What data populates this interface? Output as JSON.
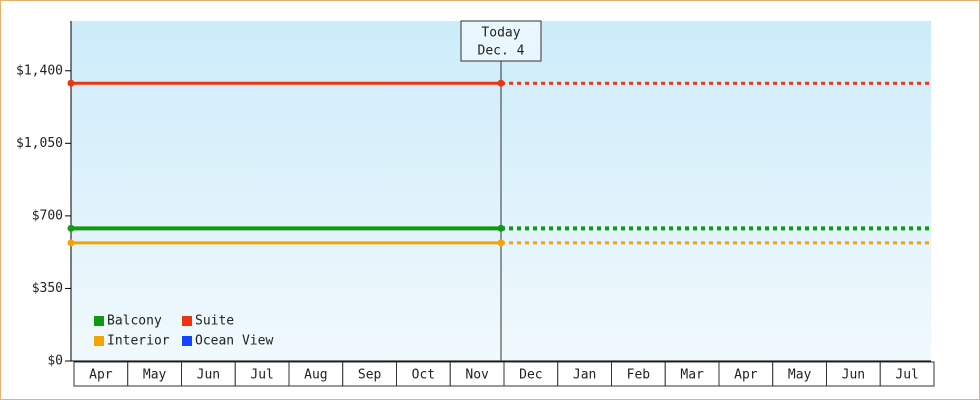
{
  "chart_data": {
    "type": "line",
    "categories": [
      "Apr",
      "May",
      "Jun",
      "Jul",
      "Aug",
      "Sep",
      "Oct",
      "Nov",
      "Dec",
      "Jan",
      "Feb",
      "Mar",
      "Apr",
      "May",
      "Jun",
      "Jul"
    ],
    "series": [
      {
        "name": "Balcony",
        "color": "#119911",
        "values": [
          640,
          640,
          640,
          640,
          640,
          640,
          640,
          640,
          640,
          640,
          640,
          640,
          640,
          640,
          640,
          640
        ]
      },
      {
        "name": "Suite",
        "color": "#ee3311",
        "values": [
          1340,
          1340,
          1340,
          1340,
          1340,
          1340,
          1340,
          1340,
          1340,
          1340,
          1340,
          1340,
          1340,
          1340,
          1340,
          1340
        ]
      },
      {
        "name": "Interior",
        "color": "#f5a300",
        "values": [
          570,
          570,
          570,
          570,
          570,
          570,
          570,
          570,
          570,
          570,
          570,
          570,
          570,
          570,
          570,
          570
        ]
      },
      {
        "name": "Ocean View",
        "color": "#1144ff",
        "values": [
          null,
          null,
          null,
          null,
          null,
          null,
          null,
          null,
          null,
          null,
          null,
          null,
          null,
          null,
          null,
          null
        ]
      }
    ],
    "annotation": {
      "lines": [
        "Today",
        "Dec. 4"
      ],
      "category": "Dec"
    },
    "ylim": [
      0,
      1640
    ],
    "yticks": [
      {
        "value": 0,
        "label": "$0"
      },
      {
        "value": 350,
        "label": "$350"
      },
      {
        "value": 700,
        "label": "$700"
      },
      {
        "value": 1050,
        "label": "$1,050"
      },
      {
        "value": 1400,
        "label": "$1,400"
      }
    ]
  }
}
